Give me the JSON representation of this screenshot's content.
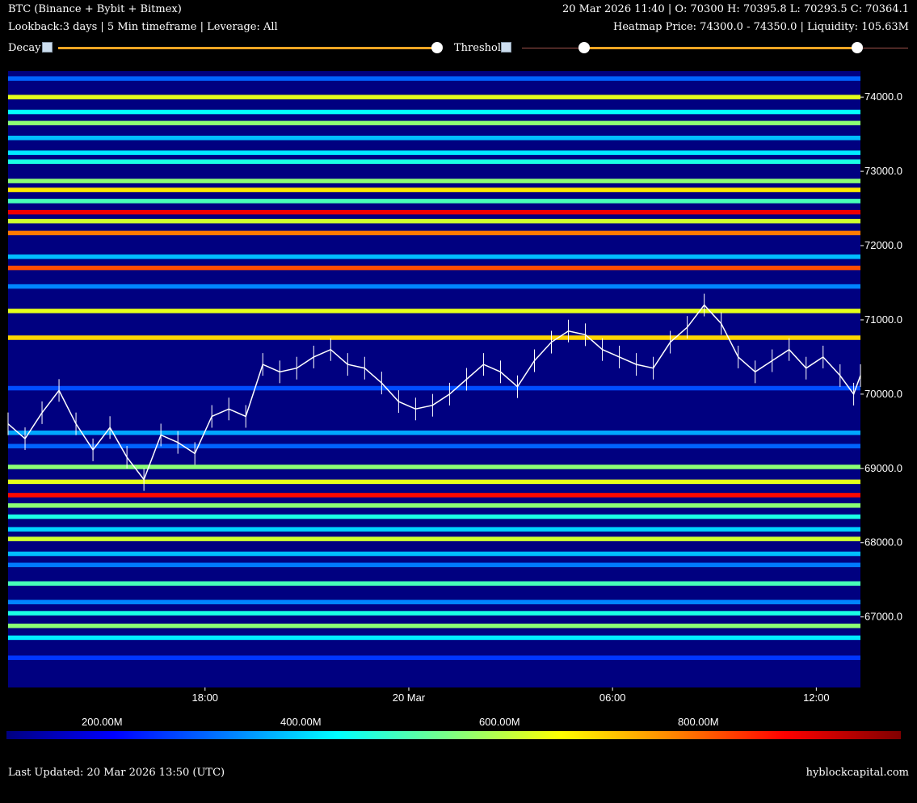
{
  "header": {
    "title": "BTC (Binance + Bybit + Bitmex)",
    "subtitle": "Lookback:3 days | 5 Min timeframe | Leverage: All",
    "ohlc": "20 Mar 2026 11:40 | O: 70300 H: 70395.8 L: 70293.5 C: 70364.1",
    "heatmap_info": "Heatmap Price: 74300.0 - 74350.0 | Liquidity: 105.63M"
  },
  "controls": {
    "decay_label": "Decay",
    "decay_icon": "broken-image-icon",
    "decay_value": 1.0,
    "threshold_label": "Threshold",
    "threshold_icon": "broken-image-icon",
    "threshold_range": [
      0.15,
      0.88
    ]
  },
  "colors": {
    "background": "#000000",
    "plot_background": "#000080",
    "candle": "#ffffff",
    "slider_accent": "#f5a623"
  },
  "colorbar": {
    "ticks": [
      "200.00M",
      "400.00M",
      "600.00M",
      "800.00M"
    ],
    "tick_values": [
      200,
      400,
      600,
      800
    ],
    "range_millions": [
      100,
      1000
    ],
    "colormap": "jet"
  },
  "footer": {
    "updated": "Last Updated: 20 Mar 2026 13:50 (UTC)",
    "brand": "hyblockcapital.com"
  },
  "chart_data": {
    "type": "heatmap",
    "title": "",
    "xlabel": "",
    "ylabel": "",
    "x_ticks": [
      "18:00",
      "20 Mar",
      "06:00",
      "12:00"
    ],
    "x_tick_hours": [
      18,
      24,
      30,
      36
    ],
    "x_range_hours": [
      12.2,
      37.3
    ],
    "y_ticks": [
      74000,
      73000,
      72000,
      71000,
      70000,
      69000,
      68000,
      67000
    ],
    "y_range": [
      66050,
      74350
    ],
    "y_tick_format": "0.0",
    "series": [
      {
        "values": [
          {
            "price": 74250,
            "intensity": 300
          },
          {
            "price": 74000,
            "intensity": 640
          },
          {
            "price": 73800,
            "intensity": 440
          },
          {
            "price": 73650,
            "intensity": 560
          },
          {
            "price": 73450,
            "intensity": 380
          },
          {
            "price": 73250,
            "intensity": 420
          },
          {
            "price": 73130,
            "intensity": 460
          },
          {
            "price": 72870,
            "intensity": 560
          },
          {
            "price": 72750,
            "intensity": 680
          },
          {
            "price": 72600,
            "intensity": 500
          },
          {
            "price": 72450,
            "intensity": 900
          },
          {
            "price": 72330,
            "intensity": 620
          },
          {
            "price": 72170,
            "intensity": 780
          },
          {
            "price": 71850,
            "intensity": 380
          },
          {
            "price": 71700,
            "intensity": 820
          },
          {
            "price": 71450,
            "intensity": 330
          },
          {
            "price": 71120,
            "intensity": 640
          },
          {
            "price": 70760,
            "intensity": 700
          },
          {
            "price": 70080,
            "intensity": 280
          },
          {
            "price": 69480,
            "intensity": 360
          },
          {
            "price": 69300,
            "intensity": 300
          },
          {
            "price": 69020,
            "intensity": 560
          },
          {
            "price": 68820,
            "intensity": 640
          },
          {
            "price": 68640,
            "intensity": 880
          },
          {
            "price": 68500,
            "intensity": 560
          },
          {
            "price": 68350,
            "intensity": 460
          },
          {
            "price": 68180,
            "intensity": 400
          },
          {
            "price": 68050,
            "intensity": 620
          },
          {
            "price": 67850,
            "intensity": 380
          },
          {
            "price": 67700,
            "intensity": 320
          },
          {
            "price": 67450,
            "intensity": 500
          },
          {
            "price": 67200,
            "intensity": 330
          },
          {
            "price": 67050,
            "intensity": 460
          },
          {
            "price": 66880,
            "intensity": 560
          },
          {
            "price": 66720,
            "intensity": 420
          },
          {
            "price": 66450,
            "intensity": 260
          }
        ]
      },
      {
        "values": [
          {
            "hour": 12.2,
            "price": 69600
          },
          {
            "hour": 12.7,
            "price": 69400
          },
          {
            "hour": 13.2,
            "price": 69750
          },
          {
            "hour": 13.7,
            "price": 70050
          },
          {
            "hour": 14.2,
            "price": 69600
          },
          {
            "hour": 14.7,
            "price": 69250
          },
          {
            "hour": 15.2,
            "price": 69550
          },
          {
            "hour": 15.7,
            "price": 69150
          },
          {
            "hour": 16.2,
            "price": 68850
          },
          {
            "hour": 16.7,
            "price": 69450
          },
          {
            "hour": 17.2,
            "price": 69350
          },
          {
            "hour": 17.7,
            "price": 69200
          },
          {
            "hour": 18.2,
            "price": 69700
          },
          {
            "hour": 18.7,
            "price": 69800
          },
          {
            "hour": 19.2,
            "price": 69700
          },
          {
            "hour": 19.7,
            "price": 70400
          },
          {
            "hour": 20.2,
            "price": 70300
          },
          {
            "hour": 20.7,
            "price": 70350
          },
          {
            "hour": 21.2,
            "price": 70500
          },
          {
            "hour": 21.7,
            "price": 70600
          },
          {
            "hour": 22.2,
            "price": 70400
          },
          {
            "hour": 22.7,
            "price": 70350
          },
          {
            "hour": 23.2,
            "price": 70150
          },
          {
            "hour": 23.7,
            "price": 69900
          },
          {
            "hour": 24.2,
            "price": 69800
          },
          {
            "hour": 24.7,
            "price": 69850
          },
          {
            "hour": 25.2,
            "price": 70000
          },
          {
            "hour": 25.7,
            "price": 70200
          },
          {
            "hour": 26.2,
            "price": 70400
          },
          {
            "hour": 26.7,
            "price": 70300
          },
          {
            "hour": 27.2,
            "price": 70100
          },
          {
            "hour": 27.7,
            "price": 70450
          },
          {
            "hour": 28.2,
            "price": 70700
          },
          {
            "hour": 28.7,
            "price": 70850
          },
          {
            "hour": 29.2,
            "price": 70800
          },
          {
            "hour": 29.7,
            "price": 70600
          },
          {
            "hour": 30.2,
            "price": 70500
          },
          {
            "hour": 30.7,
            "price": 70400
          },
          {
            "hour": 31.2,
            "price": 70350
          },
          {
            "hour": 31.7,
            "price": 70700
          },
          {
            "hour": 32.2,
            "price": 70900
          },
          {
            "hour": 32.7,
            "price": 71200
          },
          {
            "hour": 33.2,
            "price": 70950
          },
          {
            "hour": 33.7,
            "price": 70500
          },
          {
            "hour": 34.2,
            "price": 70300
          },
          {
            "hour": 34.7,
            "price": 70450
          },
          {
            "hour": 35.2,
            "price": 70600
          },
          {
            "hour": 35.7,
            "price": 70350
          },
          {
            "hour": 36.2,
            "price": 70500
          },
          {
            "hour": 36.7,
            "price": 70250
          },
          {
            "hour": 37.1,
            "price": 70000
          },
          {
            "hour": 37.3,
            "price": 70250
          }
        ]
      }
    ]
  }
}
